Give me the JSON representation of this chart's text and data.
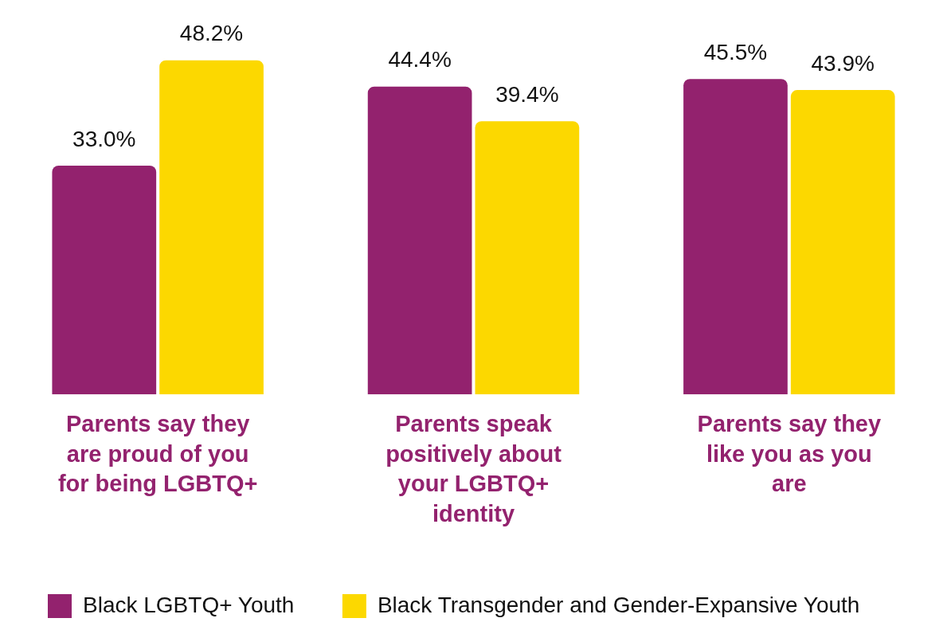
{
  "chart_data": {
    "type": "bar",
    "categories": [
      "Parents say they are proud of you for being LGBTQ+",
      "Parents speak positively about your LGBTQ+ identity",
      "Parents say they like you as you are"
    ],
    "series": [
      {
        "name": "Black LGBTQ+ Youth",
        "color": "#93226e",
        "values": [
          33.0,
          44.4,
          45.5
        ],
        "value_labels": [
          "33.0%",
          "44.4%",
          "45.5%"
        ]
      },
      {
        "name": "Black Transgender and Gender-Expansive Youth",
        "color": "#fcd800",
        "values": [
          48.2,
          39.4,
          43.9
        ],
        "value_labels": [
          "48.2%",
          "39.4%",
          "43.9%"
        ]
      }
    ],
    "legend": "bottom",
    "grid": false
  }
}
